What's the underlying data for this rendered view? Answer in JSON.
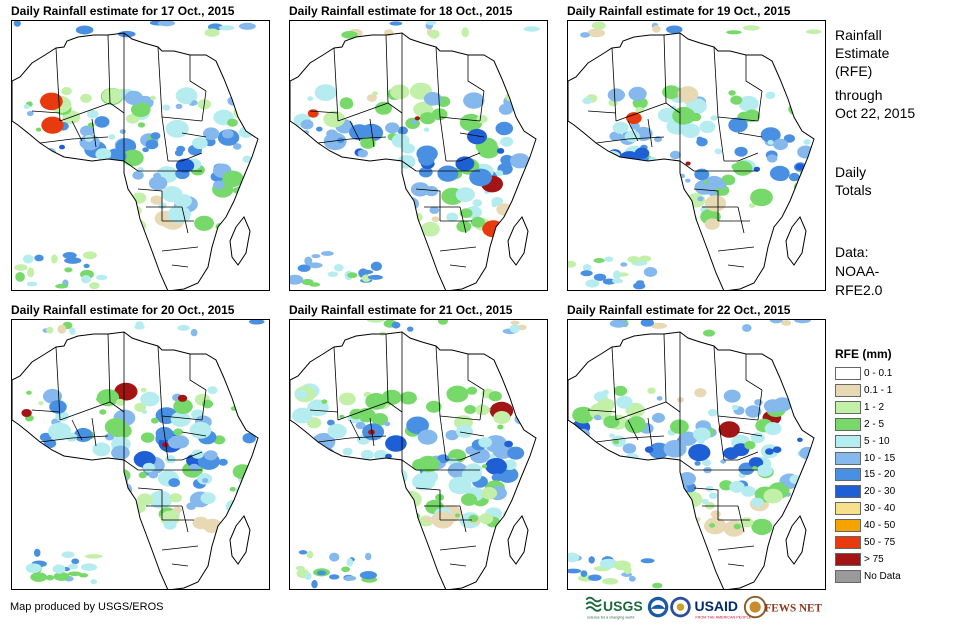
{
  "panels": [
    {
      "title": "Daily Rainfall estimate for 17 Oct., 2015"
    },
    {
      "title": "Daily Rainfall estimate for 18 Oct., 2015"
    },
    {
      "title": "Daily Rainfall estimate for 19 Oct., 2015"
    },
    {
      "title": "Daily Rainfall estimate for 20 Oct., 2015"
    },
    {
      "title": "Daily Rainfall estimate for 21 Oct., 2015"
    },
    {
      "title": "Daily Rainfall estimate for 22 Oct., 2015"
    }
  ],
  "side": {
    "heading1": "Rainfall",
    "heading2": "Estimate",
    "heading3": "(RFE)",
    "through": "through",
    "date": "Oct 22, 2015",
    "daily": "Daily",
    "totals": "Totals",
    "data_label": "Data:",
    "data_src1": "NOAA-",
    "data_src2": "RFE2.0"
  },
  "legend": {
    "title": "RFE (mm)",
    "items": [
      {
        "label": "0 - 0.1",
        "color": "#ffffff"
      },
      {
        "label": "0.1 - 1",
        "color": "#e8d9b5"
      },
      {
        "label": "1 - 2",
        "color": "#c2f0a8"
      },
      {
        "label": "2 - 5",
        "color": "#76d96a"
      },
      {
        "label": "5 - 10",
        "color": "#b4ecf0"
      },
      {
        "label": "10 - 15",
        "color": "#85b8ec"
      },
      {
        "label": "15 - 20",
        "color": "#4a90e2"
      },
      {
        "label": "20 - 30",
        "color": "#1f5fd6"
      },
      {
        "label": "30 - 40",
        "color": "#f7e08a"
      },
      {
        "label": "40 - 50",
        "color": "#f5a300"
      },
      {
        "label": "50 - 75",
        "color": "#e83a0f"
      },
      {
        "label": "> 75",
        "color": "#a31515"
      },
      {
        "label": "No Data",
        "color": "#9a9a9a"
      }
    ]
  },
  "credit": "Map produced by USGS/EROS",
  "logos": {
    "usgs": "USGS",
    "usgs_tag": "science for a changing world",
    "usaid": "USAID",
    "usaid_tag": "FROM THE AMERICAN PEOPLE",
    "fews": "FEWS NET"
  }
}
